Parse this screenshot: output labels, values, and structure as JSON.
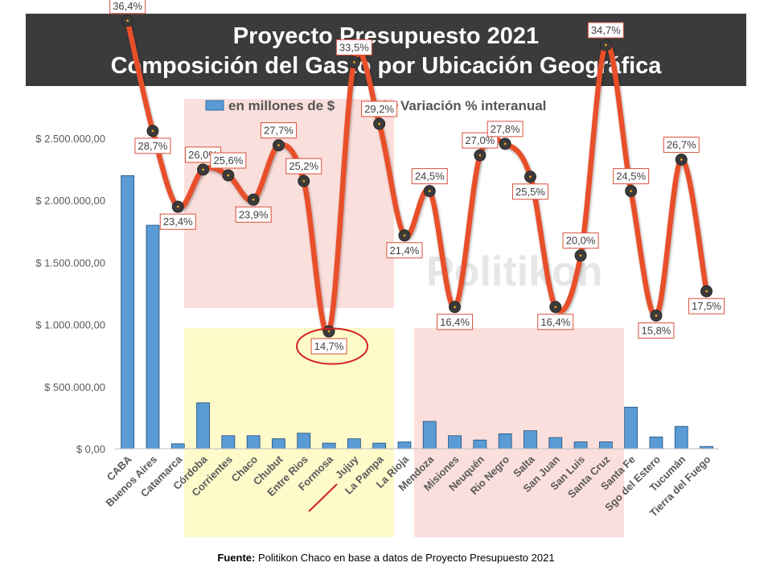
{
  "header": {
    "title_line1": "Proyecto Presupuesto 2021",
    "title_line2": "Composición del Gasto por Ubicación Geográfica"
  },
  "footer": {
    "source_label": "Fuente:",
    "source_text": " Politikon Chaco en base a datos de Proyecto Presupuesto 2021"
  },
  "watermark": "Politikon",
  "chart_data": {
    "type": "bar",
    "categories": [
      "CABA",
      "Buenos Aires",
      "Catamarca",
      "Córdoba",
      "Corrientes",
      "Chaco",
      "Chubut",
      "Entre Rios",
      "Formosa",
      "Jujuy",
      "La Pampa",
      "La Rioja",
      "Mendoza",
      "Misiones",
      "Neuquén",
      "Rio Negro",
      "Salta",
      "San Juan",
      "San Luis",
      "Santa Cruz",
      "Santa Fe",
      "Sgo del Estero",
      "Tucumán",
      "Tierra del Fuego"
    ],
    "series": [
      {
        "name": "en millones de $",
        "type": "bar",
        "color": "#5b9bd5",
        "values": [
          2200000,
          1800000,
          40000,
          370000,
          105000,
          105000,
          80000,
          125000,
          45000,
          80000,
          45000,
          55000,
          220000,
          105000,
          70000,
          120000,
          145000,
          90000,
          55000,
          55000,
          335000,
          95000,
          180000,
          18000
        ]
      },
      {
        "name": "Variación % interanual",
        "type": "line",
        "color": "#e8502a",
        "values": [
          36.4,
          28.7,
          23.4,
          26.0,
          25.6,
          23.9,
          27.7,
          25.2,
          14.7,
          33.5,
          29.2,
          21.4,
          24.5,
          16.4,
          27.0,
          27.8,
          25.5,
          16.4,
          20.0,
          34.7,
          24.5,
          15.8,
          26.7,
          17.5
        ],
        "labels": [
          "36,4%",
          "28,7%",
          "23,4%",
          "26,0%",
          "25,6%",
          "23,9%",
          "27,7%",
          "25,2%",
          "14,7%",
          "33,5%",
          "29,2%",
          "21,4%",
          "24,5%",
          "16,4%",
          "27,0%",
          "27,8%",
          "25,5%",
          "16,4%",
          "20,0%",
          "34,7%",
          "24,5%",
          "15,8%",
          "26,7%",
          "17,5%"
        ]
      }
    ],
    "y_ticks": [
      "$ 2.500.000,00",
      "$ 2.000.000,00",
      "$ 1.500.000,00",
      "$ 1.000.000,00",
      "$ 500.000,00",
      "$ 0,00"
    ],
    "ylim": [
      0,
      2500000
    ],
    "grid": false,
    "legend_position": "top"
  }
}
